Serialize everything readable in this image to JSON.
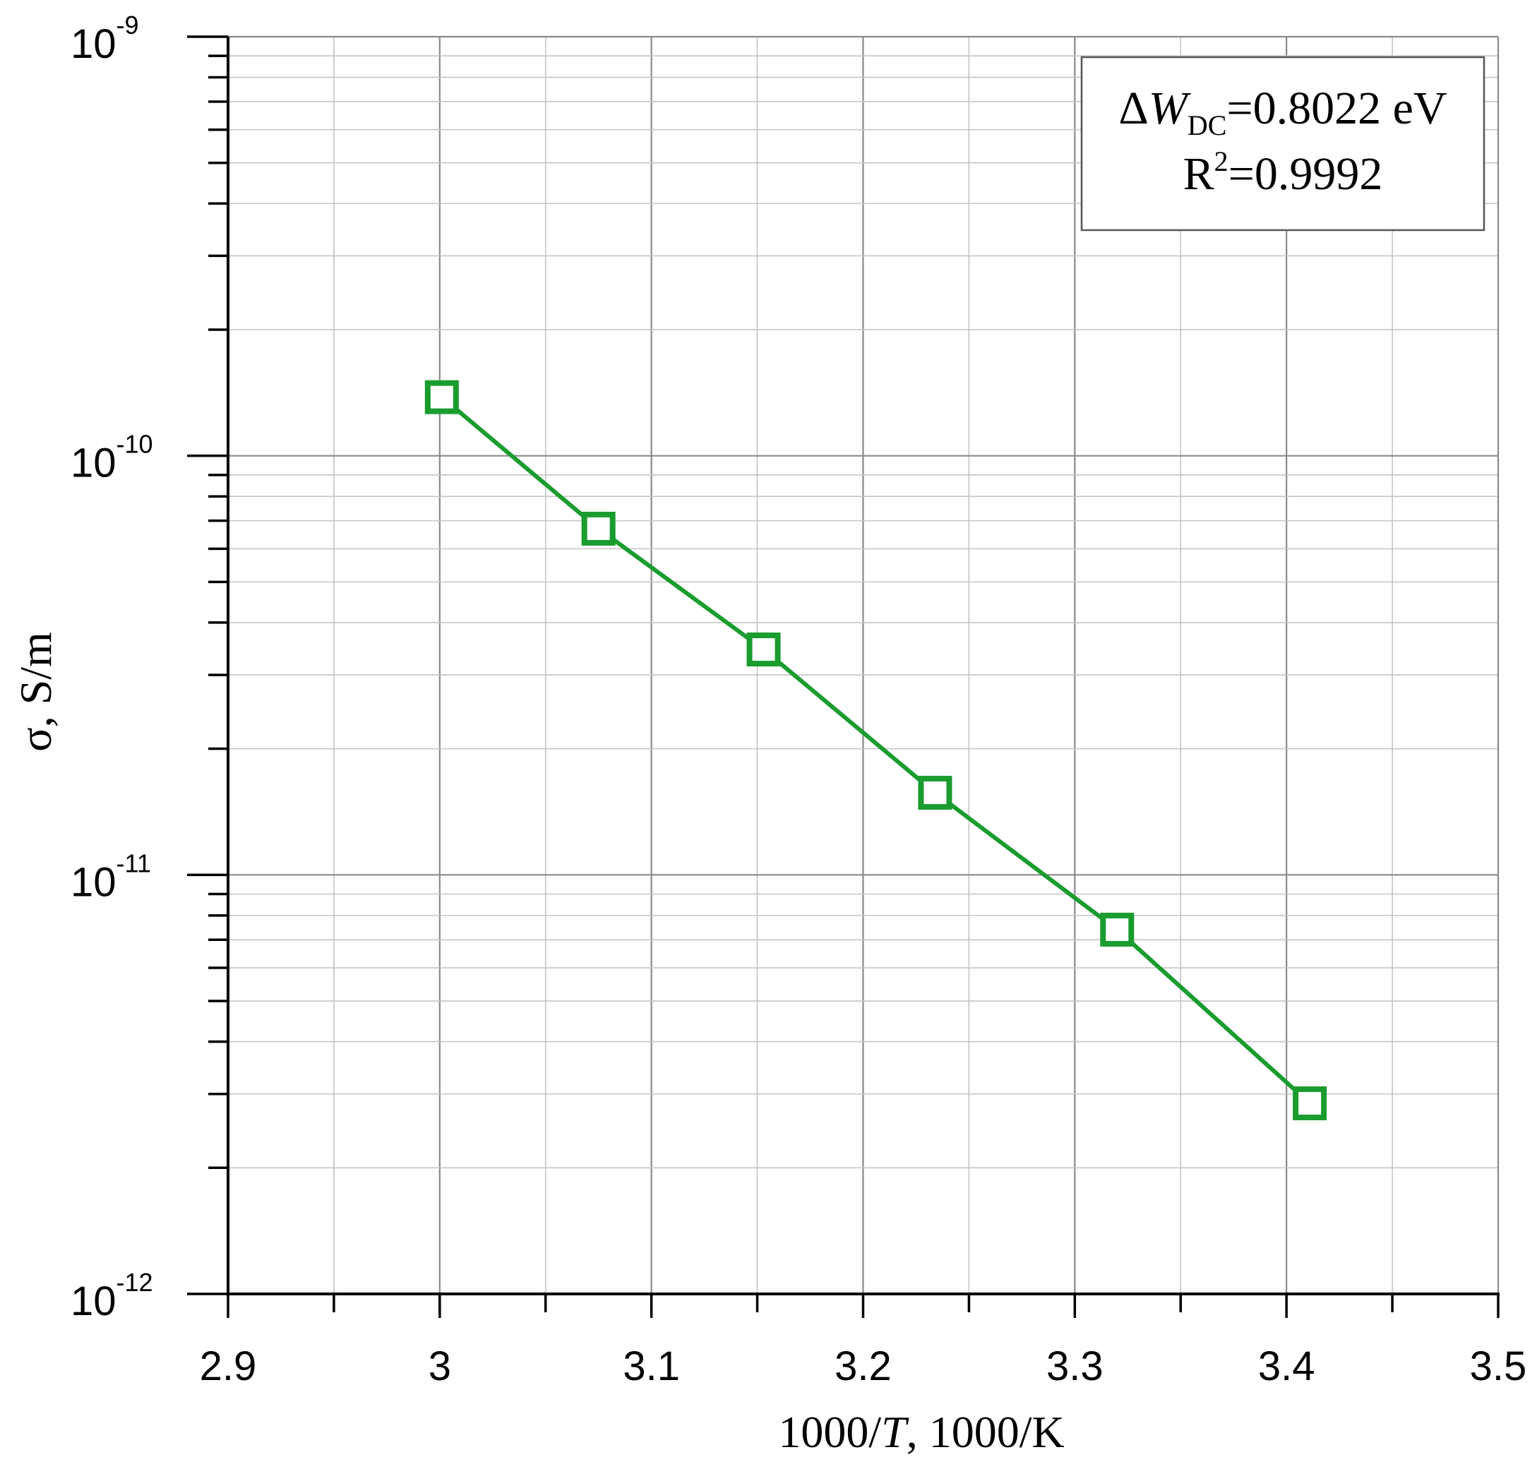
{
  "chart_data": {
    "type": "scatter",
    "x_scale": "linear",
    "y_scale": "log",
    "xlim": [
      2.9,
      3.5
    ],
    "ylim": [
      1e-12,
      1e-09
    ],
    "grid": true,
    "xlabel_parts": [
      "1000/",
      "T",
      ", 1000/K"
    ],
    "ylabel": "σ, S/m",
    "x_ticks": [
      "2.9",
      "3",
      "3.1",
      "3.2",
      "3.3",
      "3.4",
      "3.5"
    ],
    "y_ticks": [
      {
        "value": 1e-12,
        "base": "10",
        "exp": "-12"
      },
      {
        "value": 1e-11,
        "base": "10",
        "exp": "-11"
      },
      {
        "value": 1e-10,
        "base": "10",
        "exp": "-10"
      },
      {
        "value": 1e-09,
        "base": "10",
        "exp": "-9"
      }
    ],
    "series": [
      {
        "color": "#1a9c2e",
        "marker": "open-square",
        "line": true,
        "x": [
          3.001,
          3.075,
          3.153,
          3.234,
          3.32,
          3.411
        ],
        "y": [
          1.38e-10,
          6.7e-11,
          3.45e-11,
          1.57e-11,
          7.4e-12,
          2.85e-12
        ]
      }
    ],
    "annotation": {
      "line1": {
        "delta": "Δ",
        "var": "W",
        "sub": "DC",
        "rest": "=0.8022 eV"
      },
      "line2": {
        "r": "R",
        "sup": "2",
        "rest": "=0.9992"
      }
    }
  }
}
